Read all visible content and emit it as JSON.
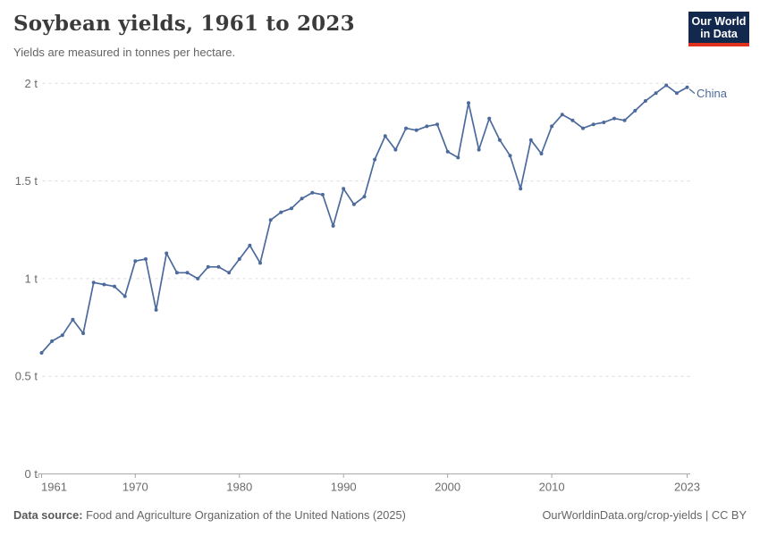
{
  "header": {
    "title": "Soybean yields, 1961 to 2023",
    "subtitle": "Yields are measured in tonnes per hectare.",
    "logo": {
      "line1": "Our World",
      "line2": "in Data",
      "bg_color": "#12294d",
      "accent_color": "#e0301e"
    }
  },
  "chart_data": {
    "type": "line",
    "title": "Soybean yields, 1961 to 2023",
    "ylabel": "tonnes per hectare",
    "xlabel": "",
    "xlim": [
      1961,
      2023
    ],
    "ylim": [
      0,
      2
    ],
    "grid": "horizontal-dashed",
    "legend_position": "end-of-line-label",
    "x_ticks": [
      {
        "value": 1961,
        "label": "1961"
      },
      {
        "value": 1970,
        "label": "1970"
      },
      {
        "value": 1980,
        "label": "1980"
      },
      {
        "value": 1990,
        "label": "1990"
      },
      {
        "value": 2000,
        "label": "2000"
      },
      {
        "value": 2010,
        "label": "2010"
      },
      {
        "value": 2023,
        "label": "2023"
      }
    ],
    "y_ticks": [
      {
        "value": 0,
        "label": "0 t"
      },
      {
        "value": 0.5,
        "label": "0.5 t"
      },
      {
        "value": 1,
        "label": "1 t"
      },
      {
        "value": 1.5,
        "label": "1.5 t"
      },
      {
        "value": 2,
        "label": "2 t"
      }
    ],
    "series": [
      {
        "name": "China",
        "color": "#4C6A9C",
        "x_start": 1961,
        "values": [
          0.62,
          0.68,
          0.71,
          0.79,
          0.72,
          0.98,
          0.97,
          0.96,
          0.91,
          1.09,
          1.1,
          0.84,
          1.13,
          1.03,
          1.03,
          1.0,
          1.06,
          1.06,
          1.03,
          1.1,
          1.17,
          1.08,
          1.3,
          1.34,
          1.36,
          1.41,
          1.44,
          1.43,
          1.27,
          1.46,
          1.38,
          1.42,
          1.61,
          1.73,
          1.66,
          1.77,
          1.76,
          1.78,
          1.79,
          1.65,
          1.62,
          1.9,
          1.66,
          1.82,
          1.71,
          1.63,
          1.46,
          1.71,
          1.64,
          1.78,
          1.84,
          1.81,
          1.77,
          1.79,
          1.8,
          1.82,
          1.81,
          1.86,
          1.91,
          1.95,
          1.99,
          1.95,
          1.98
        ]
      }
    ],
    "style": {
      "gridline_color": "#dbdbdb",
      "axis_color": "#a8a8a8",
      "tick_label_color": "#6b6b6b"
    }
  },
  "footer": {
    "source_label": "Data source:",
    "source_text": " Food and Agriculture Organization of the United Nations (2025)",
    "credit": "OurWorldinData.org/crop-yields | CC BY"
  }
}
